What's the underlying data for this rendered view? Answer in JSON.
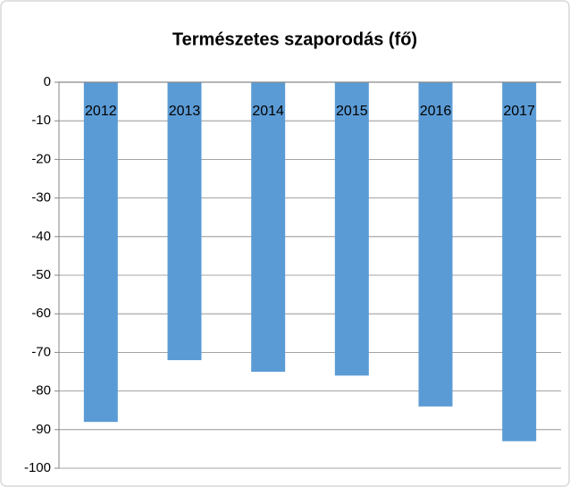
{
  "chart_data": {
    "type": "bar",
    "title": "Természetes szaporodás (fő)",
    "categories": [
      "2012",
      "2013",
      "2014",
      "2015",
      "2016",
      "2017"
    ],
    "values": [
      -88,
      -72,
      -75,
      -76,
      -84,
      -93
    ],
    "color": "#5b9bd5",
    "ylim": [
      -100,
      0
    ],
    "yticks": [
      0,
      -10,
      -20,
      -30,
      -40,
      -50,
      -60,
      -70,
      -80,
      -90,
      -100
    ],
    "grid": true
  }
}
